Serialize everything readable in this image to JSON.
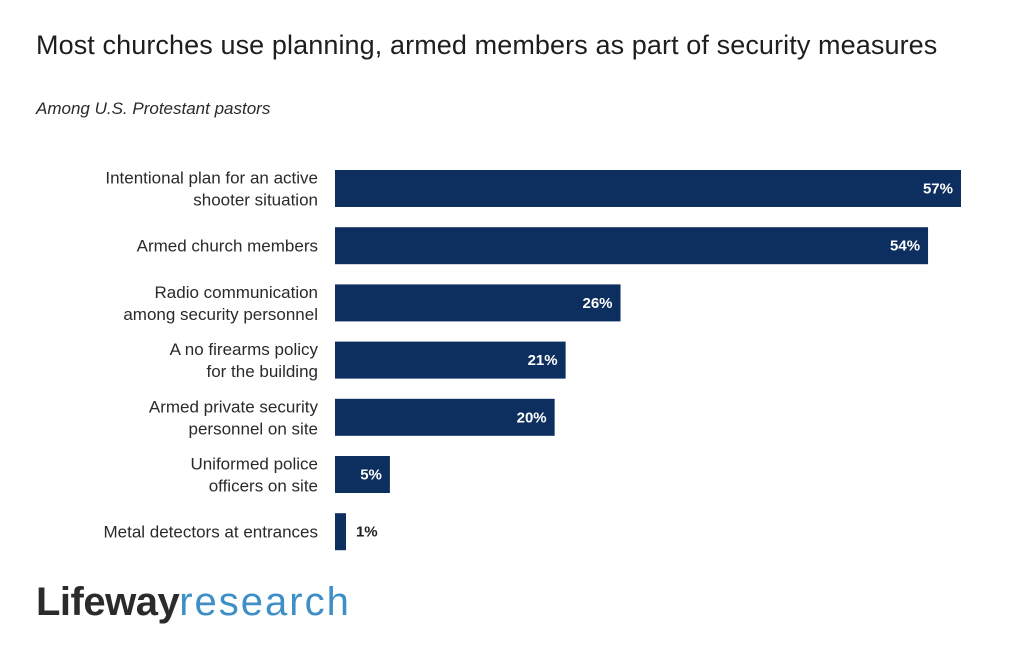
{
  "header": {
    "title": "Most churches use planning, armed members as part of security measures",
    "subtitle": "Among U.S. Protestant pastors"
  },
  "brand": {
    "part1": "Lifeway",
    "part2": "research"
  },
  "colors": {
    "bar": "#0d2f5f",
    "value_inside": "#ffffff",
    "value_outside": "#1f1f1f",
    "brand_dark": "#2b2b2b",
    "brand_blue": "#3d8fc6"
  },
  "chart_data": {
    "type": "bar",
    "orientation": "horizontal",
    "title": "Most churches use planning, armed members as part of security measures",
    "subtitle": "Among U.S. Protestant pastors",
    "categories": [
      [
        "Intentional plan for an active",
        "shooter situation"
      ],
      [
        "Armed church members"
      ],
      [
        "Radio communication",
        "among security personnel"
      ],
      [
        "A no firearms policy",
        "for the building"
      ],
      [
        "Armed private security",
        "personnel on site"
      ],
      [
        "Uniformed police",
        "officers on site"
      ],
      [
        "Metal detectors at entrances"
      ]
    ],
    "values": [
      57,
      54,
      26,
      21,
      20,
      5,
      1
    ],
    "value_labels": [
      "57%",
      "54%",
      "26%",
      "21%",
      "20%",
      "5%",
      "1%"
    ],
    "unit": "%",
    "xlim": [
      0,
      57
    ],
    "grid": false,
    "legend": "none"
  }
}
